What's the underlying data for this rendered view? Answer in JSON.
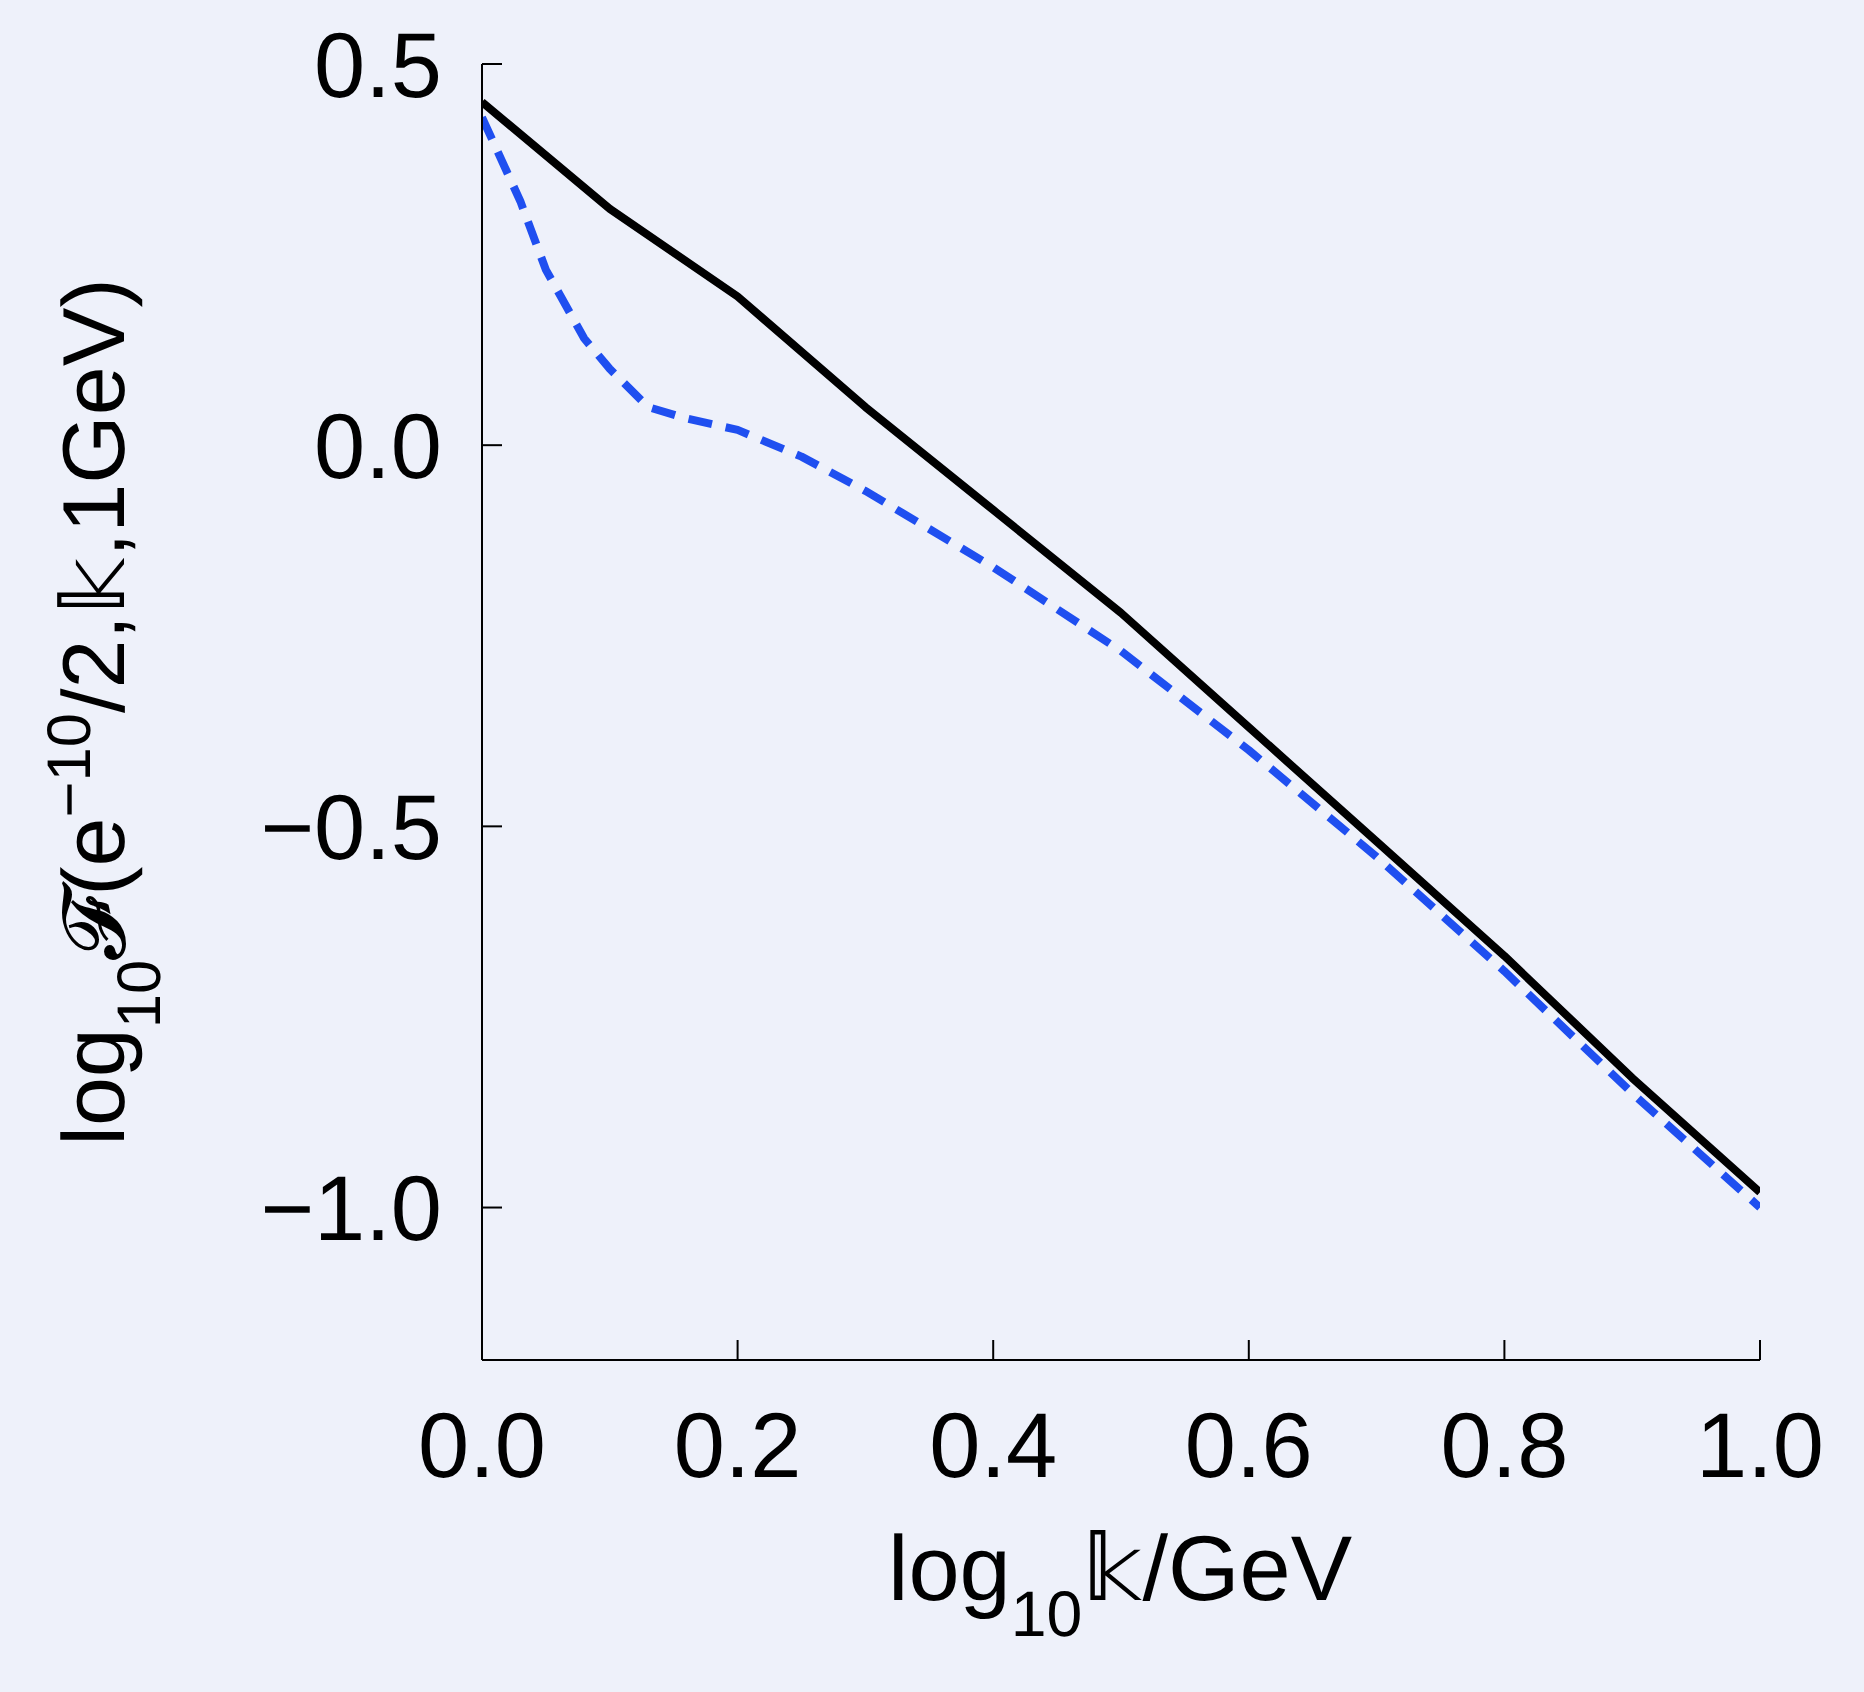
{
  "chart_data": {
    "type": "line",
    "xlabel": "log$_{10}$𝕜/GeV",
    "ylabel": "log$_{10}$𝓕(e$^{−10}$/2,𝕜,1GeV)",
    "xlim": [
      0,
      1
    ],
    "xticks": [
      {
        "value": 0,
        "label": "0.0"
      },
      0.2,
      0.4,
      0.6,
      0.8,
      {
        "value": 1,
        "label": "1.0"
      }
    ],
    "ylim": [
      -1.2,
      0.5
    ],
    "yticks": [
      0.5,
      {
        "value": 0,
        "label": "0.0"
      },
      {
        "value": -0.5,
        "label": "−0.5"
      },
      {
        "value": -1,
        "label": "−1.0"
      }
    ],
    "grid": false,
    "marker": "none",
    "series": [
      {
        "color": "#000000",
        "line_style": "solid",
        "x": [
          0,
          0.1,
          0.2,
          0.3,
          0.4,
          0.5,
          0.6,
          0.7,
          0.8,
          0.9,
          1.0
        ],
        "values": [
          0.45,
          0.31,
          0.195,
          0.05,
          -0.085,
          -0.22,
          -0.37,
          -0.52,
          -0.67,
          -0.83,
          -0.98
        ]
      },
      {
        "color": "#1f4ff0",
        "line_style": "dashed",
        "x": [
          0,
          0.03,
          0.05,
          0.08,
          0.1,
          0.13,
          0.16,
          0.2,
          0.25,
          0.3,
          0.4,
          0.5,
          0.6,
          0.7,
          0.8,
          0.9,
          1.0
        ],
        "values": [
          0.43,
          0.32,
          0.23,
          0.14,
          0.1,
          0.05,
          0.035,
          0.02,
          -0.015,
          -0.06,
          -0.16,
          -0.27,
          -0.4,
          -0.54,
          -0.69,
          -0.85,
          -1.0
        ]
      }
    ]
  }
}
